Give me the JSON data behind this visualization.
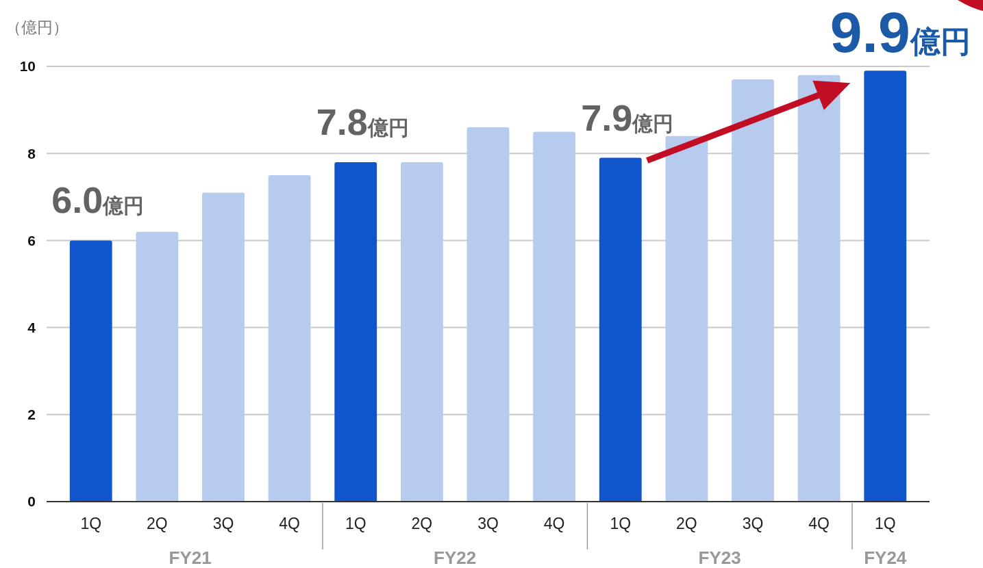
{
  "chart_data": {
    "type": "bar",
    "ylabel": "（億円）",
    "categories": [
      "1Q",
      "2Q",
      "3Q",
      "4Q",
      "1Q",
      "2Q",
      "3Q",
      "4Q",
      "1Q",
      "2Q",
      "3Q",
      "4Q",
      "1Q"
    ],
    "values": [
      6.0,
      6.2,
      7.1,
      7.5,
      7.8,
      7.8,
      8.6,
      8.5,
      7.9,
      8.4,
      9.7,
      9.8,
      9.9
    ],
    "colors": [
      "#1155cc",
      "#b7cbee",
      "#b7cbee",
      "#b7cbee",
      "#1155cc",
      "#b7cbee",
      "#b7cbee",
      "#b7cbee",
      "#1155cc",
      "#b7cbee",
      "#b7cbee",
      "#b7cbee",
      "#1155cc"
    ],
    "value_labels": [
      "6.0億円",
      null,
      null,
      null,
      "7.8億円",
      null,
      null,
      null,
      "7.9億円",
      null,
      null,
      null,
      "9.9億円"
    ],
    "ylim": [
      0,
      10
    ],
    "yticks": [
      0,
      2,
      4,
      6,
      8,
      10
    ],
    "grid": "y",
    "annotations": [
      "FY21",
      "FY22",
      "FY23",
      "FY24"
    ]
  }
}
